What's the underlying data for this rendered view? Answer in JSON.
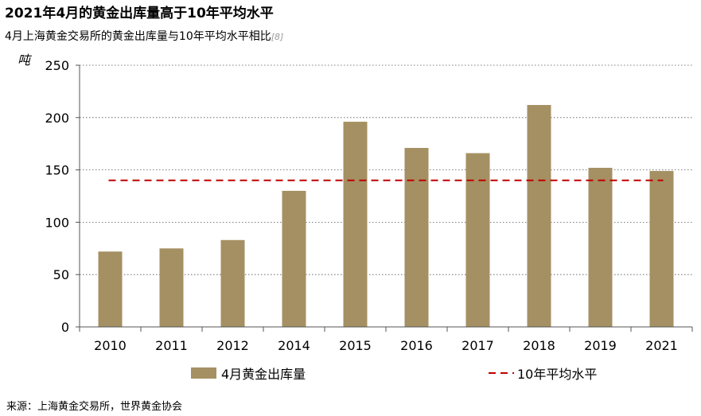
{
  "header": {
    "title": "2021年4月的黄金出库量高于10年平均水平",
    "subtitle": "4月上海黄金交易所的黄金出库量与10年平均水平相比",
    "subtitle_ref": "[8]"
  },
  "chart_data": {
    "type": "bar",
    "ylabel": "吨",
    "xlabel": "",
    "ylim": [
      0,
      250
    ],
    "yticks": [
      0,
      50,
      100,
      150,
      200,
      250
    ],
    "categories": [
      "2010",
      "2011",
      "2012",
      "2014",
      "2015",
      "2016",
      "2017",
      "2018",
      "2019",
      "2021"
    ],
    "series": [
      {
        "name": "4月黄金出库量",
        "type": "bar",
        "color": "#a59063",
        "values": [
          72,
          75,
          83,
          130,
          196,
          171,
          166,
          212,
          152,
          149
        ]
      },
      {
        "name": "10年平均水平",
        "type": "line",
        "style": "dashed",
        "color": "#c00000",
        "value": 140
      }
    ],
    "grid": "horizontal dotted",
    "legend": "bottom"
  },
  "footer": {
    "source": "来源：上海黄金交易所，世界黄金协会"
  }
}
